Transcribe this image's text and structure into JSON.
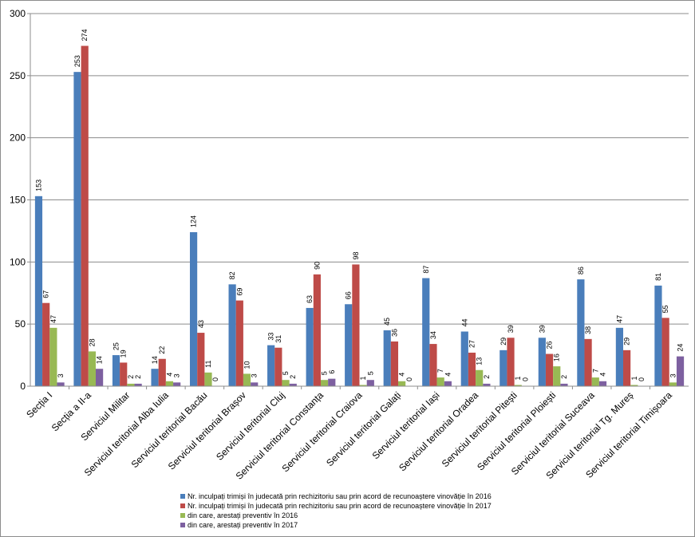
{
  "chart_data": {
    "type": "bar",
    "title": "",
    "xlabel": "",
    "ylabel": "",
    "ylim": [
      0,
      300
    ],
    "yticks": [
      0,
      50,
      100,
      150,
      200,
      250,
      300
    ],
    "grid": true,
    "legend_position": "bottom",
    "categories": [
      "Secția I",
      "Secția a II-a",
      "Serviciul Militar",
      "Serviciul teritorial Alba Iulia",
      "Serviciul teritorial Bacău",
      "Serviciul teritorial Brașov",
      "Serviciul teritorial Cluj",
      "Serviciul teritorial Constanța",
      "Serviciul teritorial Craiova",
      "Serviciul teritorial Galați",
      "Serviciul teritorial Iași",
      "Serviciul teritorial Oradea",
      "Serviciul teritorial Pitești",
      "Serviciul teritorial Ploiești",
      "Serviciul teritorial Suceava",
      "Serviciul teritorial Tg. Mureș",
      "Serviciul teritorial Timișoara"
    ],
    "series": [
      {
        "name": "Nr. inculpați trimiși în judecată prin rechizitoriu sau prin acord de recunoaștere vinovăție în 2016",
        "color": "#4a7ebb",
        "values": [
          153,
          253,
          25,
          14,
          124,
          82,
          33,
          63,
          66,
          45,
          87,
          44,
          29,
          39,
          86,
          47,
          81
        ]
      },
      {
        "name": "Nr. inculpați trimiși în judecată prin rechizitoriu sau prin acord de recunoaștere vinovăție în 2017",
        "color": "#be4b48",
        "values": [
          67,
          274,
          19,
          22,
          43,
          69,
          31,
          90,
          98,
          36,
          34,
          27,
          39,
          26,
          38,
          29,
          55
        ]
      },
      {
        "name": "din care, arestați preventiv în 2016",
        "color": "#98b954",
        "values": [
          47,
          28,
          2,
          4,
          11,
          10,
          5,
          5,
          1,
          4,
          7,
          13,
          1,
          16,
          7,
          1,
          3
        ]
      },
      {
        "name": "din care, arestați preventiv în 2017",
        "color": "#7d60a0",
        "values": [
          3,
          14,
          2,
          3,
          0,
          3,
          2,
          6,
          5,
          0,
          4,
          2,
          0,
          2,
          4,
          0,
          24
        ]
      }
    ]
  }
}
